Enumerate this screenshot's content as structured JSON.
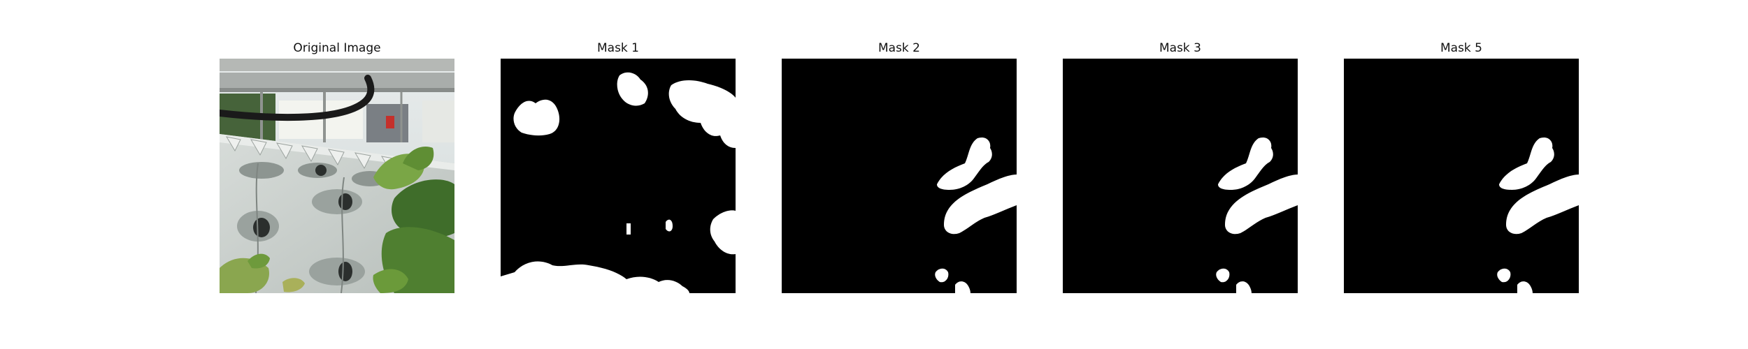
{
  "panels": [
    {
      "title": "Original Image"
    },
    {
      "title": "Mask 1"
    },
    {
      "title": "Mask 2"
    },
    {
      "title": "Mask 3"
    },
    {
      "title": "Mask 5"
    }
  ],
  "colors": {
    "background": "#ffffff",
    "mask_background": "#000000",
    "mask_foreground": "#ffffff",
    "planter": "#c9cecb",
    "leaf": "#6f9a3e",
    "dark_leaf": "#355f24"
  }
}
